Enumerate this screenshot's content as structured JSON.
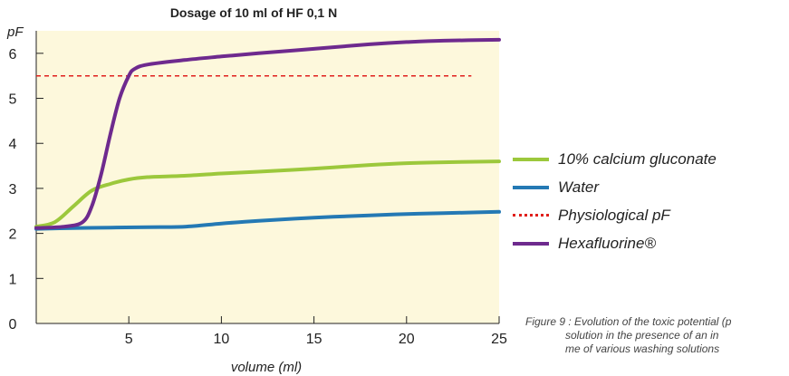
{
  "chart_data": {
    "type": "line",
    "title": "Dosage of 10 ml of HF 0,1 N",
    "xlabel": "volume (ml)",
    "ylabel": "pF",
    "xlim": [
      0,
      25
    ],
    "ylim": [
      0,
      6.5
    ],
    "x_ticks": [
      5,
      10,
      15,
      20,
      25
    ],
    "y_ticks": [
      0,
      1,
      2,
      3,
      4,
      5,
      6
    ],
    "plot_background": "#fdf8dc",
    "grid": false,
    "legend_position": "right",
    "series": [
      {
        "name": "10% calcium gluconate",
        "color": "#9cc83c",
        "style": "solid",
        "x": [
          0,
          1,
          2,
          3,
          4,
          5,
          6,
          8,
          10,
          12,
          15,
          18,
          20,
          22,
          25
        ],
        "y": [
          2.15,
          2.25,
          2.6,
          2.95,
          3.1,
          3.2,
          3.25,
          3.28,
          3.33,
          3.37,
          3.44,
          3.52,
          3.56,
          3.58,
          3.6
        ]
      },
      {
        "name": "Water",
        "color": "#2479b4",
        "style": "solid",
        "x": [
          0,
          2,
          4,
          6,
          8,
          10,
          12,
          15,
          18,
          20,
          22,
          25
        ],
        "y": [
          2.1,
          2.12,
          2.13,
          2.14,
          2.15,
          2.22,
          2.28,
          2.35,
          2.4,
          2.43,
          2.45,
          2.48
        ]
      },
      {
        "name": "Physiological pF",
        "color": "#e0201c",
        "style": "dashed",
        "x": [
          0,
          23.5
        ],
        "y": [
          5.5,
          5.5
        ]
      },
      {
        "name": "Hexafluorine®",
        "color": "#6e2a8e",
        "style": "solid",
        "x": [
          0,
          1.5,
          2.5,
          3,
          3.5,
          4,
          4.5,
          5,
          5.3,
          6,
          8,
          10,
          12,
          15,
          18,
          20,
          22,
          25
        ],
        "y": [
          2.12,
          2.15,
          2.25,
          2.6,
          3.3,
          4.2,
          5.0,
          5.5,
          5.65,
          5.75,
          5.85,
          5.93,
          6.0,
          6.1,
          6.2,
          6.25,
          6.28,
          6.3
        ]
      }
    ]
  },
  "caption": {
    "line1": "Figure 9 : Evolution of the toxic potential (p",
    "line2": "solution in the presence of an in",
    "line3": "me of various washing solutions"
  }
}
